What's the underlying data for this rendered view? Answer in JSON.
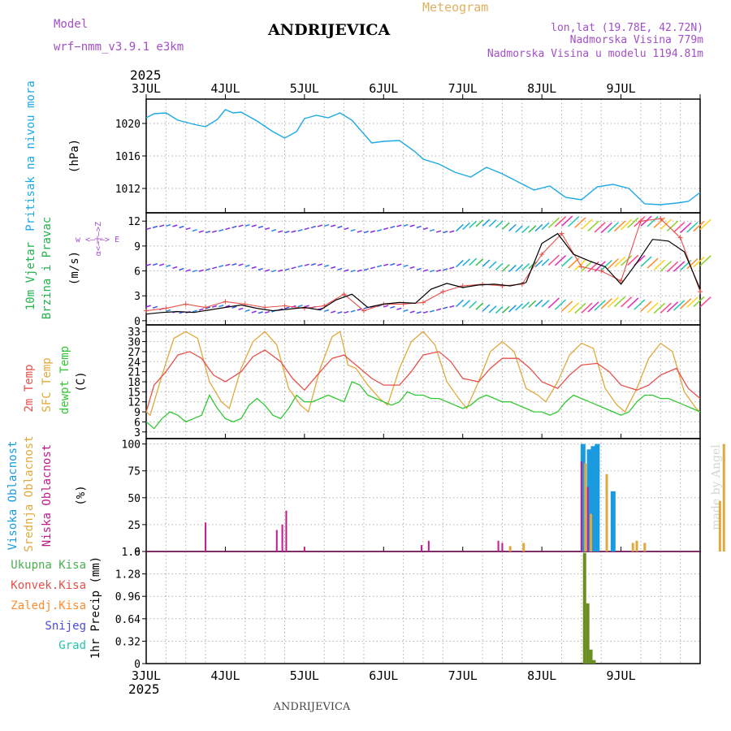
{
  "header": {
    "model_label": "Model",
    "model_name": "wrf−nmm_v3.9.1  e3km",
    "title": "Meteogram",
    "station": "ANDRIJEVICA",
    "coords": "lon,lat (19.78E, 42.72N)",
    "elevation": "Nadmorska Visina 779m",
    "model_elevation": "Nadmorska Visina u modelu 1194.81m",
    "footer_station": "ANDRIJEVICA",
    "credit": "made by Angel",
    "year_top": "2025",
    "year_bottom": "2025"
  },
  "colors": {
    "pressure": "#1ca9e6",
    "wind_label": "#22b24c",
    "temp2m": "#e8504a",
    "sfc": "#e0a93e",
    "dew": "#31c931",
    "purple": "#a24fc9",
    "high_cloud": "#1a9be0",
    "mid_cloud": "#e0a93e",
    "low_cloud": "#c21a8c",
    "precip_total": "#4caf50",
    "precip_conv": "#e8504a",
    "precip_ice": "#ff8c2e",
    "precip_snow": "#4a4ae0",
    "precip_hail": "#22c7a8"
  },
  "chart_data": [
    {
      "type": "line",
      "name": "pressure",
      "ylabel": "Pritisak na nivou mora",
      "unit": "(hPa)",
      "ylim": [
        1009,
        1023
      ],
      "yticks": [
        1012,
        1016,
        1020
      ],
      "x_dates": [
        "3JUL",
        "4JUL",
        "5JUL",
        "6JUL",
        "7JUL",
        "8JUL",
        "9JUL"
      ],
      "series": [
        {
          "name": "pressure",
          "x": [
            0,
            0.1,
            0.25,
            0.4,
            0.6,
            0.75,
            0.9,
            1.0,
            1.1,
            1.2,
            1.4,
            1.6,
            1.75,
            1.9,
            2.0,
            2.15,
            2.3,
            2.45,
            2.6,
            2.85,
            3.0,
            3.2,
            3.4,
            3.5,
            3.7,
            3.9,
            4.1,
            4.3,
            4.5,
            4.7,
            4.9,
            5.1,
            5.3,
            5.5,
            5.7,
            5.9,
            6.1,
            6.3,
            6.5,
            6.7,
            6.85,
            7.0
          ],
          "values": [
            1020.7,
            1021.2,
            1021.3,
            1020.4,
            1019.9,
            1019.6,
            1020.5,
            1021.7,
            1021.3,
            1021.4,
            1020.3,
            1019.0,
            1018.2,
            1019.0,
            1020.6,
            1021.0,
            1020.7,
            1021.3,
            1020.4,
            1017.6,
            1017.8,
            1017.9,
            1016.5,
            1015.6,
            1015.0,
            1014.0,
            1013.4,
            1014.6,
            1013.8,
            1012.8,
            1011.8,
            1012.3,
            1010.9,
            1010.6,
            1012.2,
            1012.5,
            1012.0,
            1010.1,
            1010.0,
            1010.2,
            1010.4,
            1011.5
          ]
        }
      ]
    },
    {
      "type": "line",
      "name": "wind",
      "ylabel": [
        "10m Vjetar",
        "Brzina i Pravac"
      ],
      "unit": "(m/s)",
      "compass": "w <—|—> E",
      "compass_vertical": "α<—|—>Z",
      "ylim": [
        -0.5,
        13
      ],
      "yticks": [
        0,
        3,
        6,
        9,
        12
      ],
      "series": [
        {
          "name": "wind_speed",
          "x": [
            0,
            0.2,
            0.4,
            0.6,
            0.8,
            1.0,
            1.2,
            1.4,
            1.6,
            1.8,
            2.0,
            2.2,
            2.4,
            2.6,
            2.8,
            3.0,
            3.2,
            3.4,
            3.6,
            3.8,
            4.0,
            4.2,
            4.4,
            4.6,
            4.8,
            5.0,
            5.2,
            5.4,
            5.6,
            5.8,
            6.0,
            6.2,
            6.4,
            6.6,
            6.8,
            7.0
          ],
          "values": [
            0.8,
            1.0,
            1.1,
            1.0,
            1.3,
            1.6,
            1.9,
            1.5,
            1.2,
            1.4,
            1.6,
            1.3,
            2.5,
            3.2,
            1.6,
            2.0,
            2.2,
            2.1,
            3.8,
            4.5,
            4.0,
            4.3,
            4.4,
            4.2,
            4.6,
            9.3,
            10.5,
            8.0,
            7.2,
            6.5,
            4.4,
            7.0,
            9.8,
            9.6,
            8.3,
            3.8
          ]
        },
        {
          "name": "gust",
          "x": [
            0,
            0.25,
            0.5,
            0.75,
            1.0,
            1.25,
            1.5,
            1.75,
            2.0,
            2.25,
            2.5,
            2.75,
            3.0,
            3.25,
            3.5,
            3.75,
            4.0,
            4.25,
            4.5,
            4.75,
            5.0,
            5.25,
            5.5,
            5.75,
            6.0,
            6.25,
            6.5,
            6.75,
            7.0
          ],
          "values": [
            1.2,
            1.5,
            2.0,
            1.6,
            2.3,
            2.0,
            1.6,
            1.8,
            1.5,
            1.8,
            3.2,
            1.2,
            2.0,
            2.0,
            2.2,
            3.5,
            4.2,
            4.4,
            4.2,
            4.4,
            8.0,
            10.5,
            6.5,
            6.0,
            4.8,
            12.0,
            12.3,
            10.0,
            3.5
          ]
        }
      ]
    },
    {
      "type": "line",
      "name": "temperature",
      "ylabels": [
        "2m Temp",
        "SFC Temp",
        "dewpt Temp"
      ],
      "unit": "(C)",
      "ylim": [
        1,
        35
      ],
      "yticks": [
        3,
        6,
        9,
        12,
        15,
        18,
        21,
        24,
        27,
        30,
        33
      ],
      "series": [
        {
          "name": "2m Temp",
          "x": [
            0,
            0.1,
            0.25,
            0.4,
            0.55,
            0.7,
            0.85,
            1.0,
            1.2,
            1.35,
            1.5,
            1.7,
            1.85,
            2.0,
            2.2,
            2.35,
            2.5,
            2.7,
            2.85,
            3.0,
            3.2,
            3.35,
            3.5,
            3.7,
            3.85,
            4.0,
            4.2,
            4.35,
            4.5,
            4.7,
            4.85,
            5.0,
            5.2,
            5.35,
            5.5,
            5.7,
            5.85,
            6.0,
            6.2,
            6.35,
            6.5,
            6.7,
            6.85,
            7.0
          ],
          "values": [
            9,
            17,
            21,
            26,
            27,
            25,
            20,
            18,
            21,
            25.5,
            27.5,
            24,
            19,
            15.5,
            21,
            25,
            26,
            22,
            19,
            17,
            17,
            21,
            26,
            27,
            24,
            19,
            18,
            22,
            25,
            25,
            22,
            18,
            16,
            20,
            23,
            23.5,
            21,
            17,
            15.5,
            17,
            20,
            22,
            16,
            13
          ]
        },
        {
          "name": "SFC Temp",
          "x": [
            0,
            0.05,
            0.2,
            0.35,
            0.5,
            0.65,
            0.8,
            0.95,
            1.05,
            1.2,
            1.35,
            1.5,
            1.65,
            1.8,
            1.95,
            2.05,
            2.2,
            2.35,
            2.45,
            2.55,
            2.65,
            2.8,
            2.95,
            3.05,
            3.2,
            3.35,
            3.5,
            3.65,
            3.8,
            3.95,
            4.05,
            4.2,
            4.35,
            4.5,
            4.65,
            4.8,
            4.95,
            5.05,
            5.2,
            5.35,
            5.5,
            5.65,
            5.8,
            5.95,
            6.05,
            6.2,
            6.35,
            6.5,
            6.65,
            6.8,
            6.95,
            7.0
          ],
          "values": [
            9,
            8,
            20,
            31,
            33,
            31,
            18,
            12,
            10,
            22,
            30,
            33,
            29,
            16,
            11,
            9,
            22,
            31.5,
            33,
            23,
            22,
            17,
            13,
            11,
            22,
            30,
            33,
            29,
            18,
            13,
            10,
            18,
            27,
            30,
            27,
            16,
            14,
            12,
            18,
            26,
            29.5,
            28,
            16,
            11,
            9,
            16,
            25,
            29.5,
            27,
            15,
            10,
            9
          ]
        },
        {
          "name": "dewpt Temp",
          "x": [
            0,
            0.1,
            0.2,
            0.3,
            0.4,
            0.5,
            0.6,
            0.7,
            0.8,
            0.9,
            1.0,
            1.1,
            1.2,
            1.3,
            1.4,
            1.5,
            1.6,
            1.7,
            1.8,
            1.9,
            2.0,
            2.1,
            2.2,
            2.3,
            2.4,
            2.5,
            2.6,
            2.7,
            2.8,
            2.9,
            3.0,
            3.1,
            3.2,
            3.3,
            3.4,
            3.5,
            3.6,
            3.7,
            3.8,
            3.9,
            4.0,
            4.1,
            4.2,
            4.3,
            4.4,
            4.5,
            4.6,
            4.7,
            4.8,
            4.9,
            5.0,
            5.1,
            5.2,
            5.3,
            5.4,
            5.5,
            5.6,
            5.7,
            5.8,
            5.9,
            6.0,
            6.1,
            6.2,
            6.3,
            6.4,
            6.5,
            6.6,
            6.7,
            6.8,
            6.9,
            7.0
          ],
          "values": [
            6,
            4,
            7,
            9,
            8,
            6,
            7,
            8,
            14,
            10,
            7,
            6,
            7,
            11,
            13,
            11,
            8,
            7,
            10,
            14,
            12,
            12,
            13,
            14,
            13,
            12,
            18,
            17,
            14,
            13,
            12,
            11,
            12,
            15,
            14,
            14,
            13,
            13,
            12,
            11,
            10,
            11,
            13,
            14,
            13,
            12,
            12,
            11,
            10,
            9,
            9,
            8,
            9,
            12,
            14,
            13,
            12,
            11,
            10,
            9,
            8,
            9,
            12,
            14,
            14,
            13,
            13,
            12,
            11,
            10,
            9
          ]
        }
      ]
    },
    {
      "type": "bar",
      "name": "cloud",
      "ylabels": [
        "Visoka Oblacnost",
        "Srednja Oblacnost",
        "Niska Oblacnost"
      ],
      "unit": "(%)",
      "ylim": [
        0,
        105
      ],
      "yticks": [
        0,
        25,
        50,
        75,
        100
      ],
      "series": [
        {
          "name": "Visoka Oblacnost",
          "x": [
            5.52,
            5.6,
            5.65,
            5.7,
            5.9,
            0.75,
            4.05
          ],
          "values": [
            100,
            95,
            98,
            100,
            56,
            0,
            0
          ]
        },
        {
          "name": "Srednja Oblacnost",
          "x": [
            4.6,
            4.77,
            5.55,
            5.62,
            5.82,
            6.15,
            6.2,
            6.3,
            7.25,
            7.3
          ],
          "values": [
            5,
            8,
            82,
            35,
            72,
            8,
            10,
            8,
            47,
            100
          ]
        },
        {
          "name": "Niska Oblacnost",
          "x": [
            0.75,
            1.65,
            1.72,
            1.77,
            2.0,
            5.5,
            5.58,
            3.48,
            3.57,
            4.45,
            4.5
          ],
          "values": [
            27,
            20,
            25,
            38,
            4,
            84,
            60,
            6,
            10,
            10,
            8
          ]
        }
      ]
    },
    {
      "type": "bar",
      "name": "precip",
      "ylabel": "1hr Precip (mm)",
      "legend": [
        "Ukupna Kisa",
        "Konvek.Kisa",
        "Zaledj.Kisa",
        "Snijeg",
        "Grad"
      ],
      "ylim": [
        0,
        1.6
      ],
      "yticks": [
        0,
        0.32,
        0.64,
        0.96,
        1.28,
        1.6
      ],
      "series": [
        {
          "name": "Ukupna Kisa",
          "x": [
            5.54,
            5.58,
            5.62,
            5.66
          ],
          "values": [
            1.58,
            0.86,
            0.2,
            0.05
          ]
        }
      ]
    }
  ]
}
